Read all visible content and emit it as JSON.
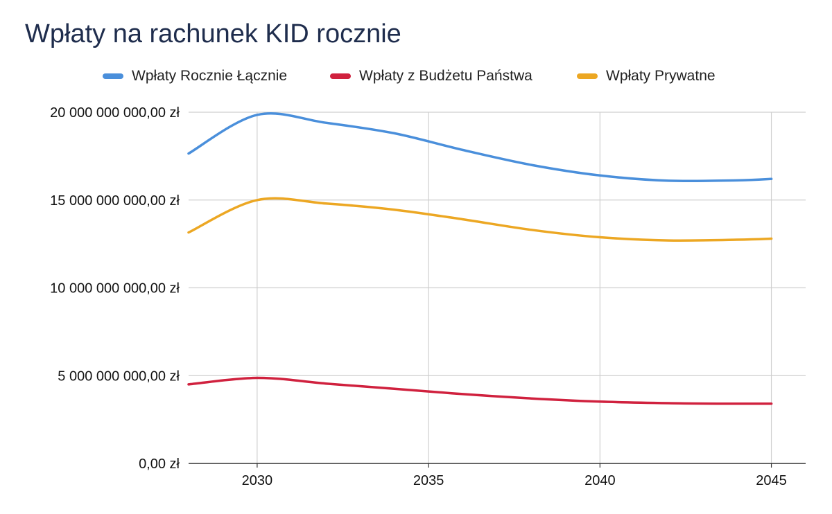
{
  "title": "Wpłaty na rachunek KID rocznie",
  "colors": {
    "total": "#4a8fdb",
    "budget": "#d0213e",
    "private": "#eca723",
    "grid": "#cfcfcf",
    "axis": "#333333"
  },
  "chart_data": {
    "type": "line",
    "title": "Wpłaty na rachunek KID rocznie",
    "xlabel": "",
    "ylabel": "",
    "x": [
      2028,
      2030,
      2032,
      2034,
      2036,
      2038,
      2040,
      2042,
      2044,
      2045
    ],
    "xlim": [
      2028,
      2046
    ],
    "ylim": [
      0,
      20000000000
    ],
    "x_ticks": [
      "2030",
      "2035",
      "2040",
      "2045"
    ],
    "y_ticks": [
      "0,00 zł",
      "5 000 000 000,00 zł",
      "10 000 000 000,00 zł",
      "15 000 000 000,00 zł",
      "20 000 000 000,00 zł"
    ],
    "grid": true,
    "legend_position": "top",
    "series": [
      {
        "name": "Wpłaty Rocznie Łącznie",
        "color": "#4a8fdb",
        "values": [
          17650000000,
          19850000000,
          19400000000,
          18800000000,
          17850000000,
          17000000000,
          16400000000,
          16100000000,
          16120000000,
          16200000000
        ]
      },
      {
        "name": "Wpłaty z Budżetu Państwa",
        "color": "#d0213e",
        "values": [
          4500000000,
          4870000000,
          4550000000,
          4250000000,
          3950000000,
          3700000000,
          3520000000,
          3430000000,
          3400000000,
          3400000000
        ]
      },
      {
        "name": "Wpłaty Prywatne",
        "color": "#eca723",
        "values": [
          13150000000,
          15000000000,
          14800000000,
          14450000000,
          13900000000,
          13300000000,
          12880000000,
          12700000000,
          12740000000,
          12800000000
        ]
      }
    ]
  }
}
